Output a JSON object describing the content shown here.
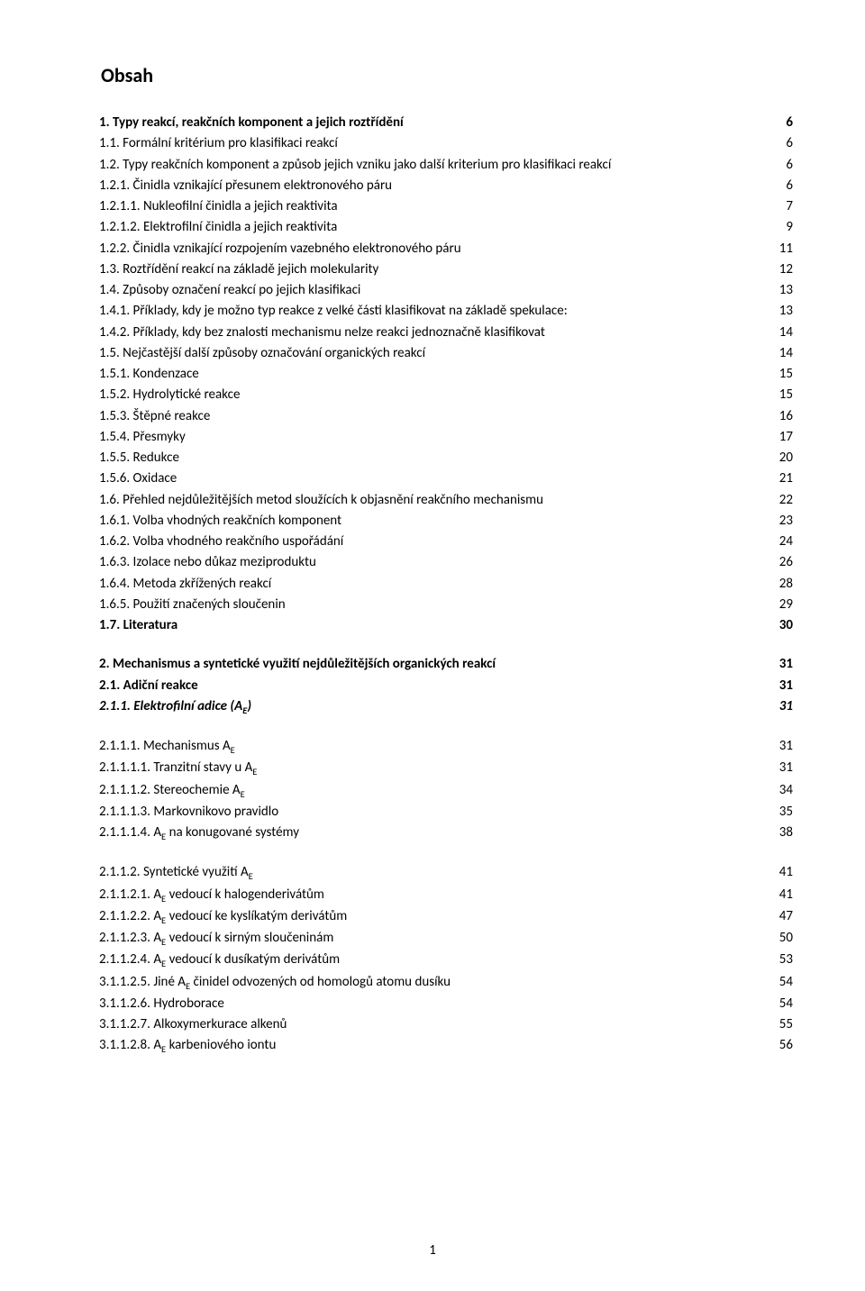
{
  "title": "Obsah",
  "page_number": "1",
  "groups": [
    {
      "gap_before": false,
      "items": [
        {
          "label_html": "<b>1. Typy reakcí, reakčních komponent a jejich roztřídění</b>",
          "page": "6",
          "bold": true
        },
        {
          "label_html": "1.1. Formální kritérium pro klasifikaci reakcí",
          "page": "6"
        },
        {
          "label_html": "1.2. Typy reakčních komponent a způsob jejich vzniku jako další kriterium pro klasifikaci reakcí",
          "page": "6"
        },
        {
          "label_html": "1.2.1. Činidla vznikající přesunem elektronového páru",
          "page": "6"
        },
        {
          "label_html": "1.2.1.1. Nukleofilní činidla a jejich reaktivita",
          "page": "7"
        },
        {
          "label_html": "1.2.1.2. Elektrofilní činidla a jejich reaktivita",
          "page": "9"
        },
        {
          "label_html": "1.2.2. Činidla vznikající rozpojením vazebného elektronového páru",
          "page": "11"
        },
        {
          "label_html": "1.3. Roztřídění reakcí na základě jejich molekularity",
          "page": "12"
        },
        {
          "label_html": "1.4. Způsoby označení reakcí po jejich klasifikaci",
          "page": "13"
        },
        {
          "label_html": "1.4.1. Příklady, kdy je možno typ reakce z velké části klasifikovat na základě spekulace:",
          "page": "13"
        },
        {
          "label_html": "1.4.2. Příklady, kdy bez znalosti mechanismu nelze reakci jednoznačně klasifikovat",
          "page": "14"
        },
        {
          "label_html": "1.5. Nejčastější další způsoby označování organických reakcí",
          "page": "14"
        },
        {
          "label_html": "1.5.1. Kondenzace",
          "page": "15"
        },
        {
          "label_html": "1.5.2. Hydrolytické reakce",
          "page": "15"
        },
        {
          "label_html": "1.5.3. Štěpné reakce",
          "page": "16"
        },
        {
          "label_html": "1.5.4. Přesmyky",
          "page": "17"
        },
        {
          "label_html": "1.5.5. Redukce",
          "page": "20"
        },
        {
          "label_html": "1.5.6. Oxidace",
          "page": "21"
        },
        {
          "label_html": "1.6. Přehled nejdůležitějších metod sloužících k objasnění reakčního mechanismu",
          "page": "22"
        },
        {
          "label_html": "1.6.1. Volba vhodných reakčních komponent",
          "page": "23"
        },
        {
          "label_html": "1.6.2. Volba vhodného reakčního uspořádání",
          "page": "24"
        },
        {
          "label_html": "1.6.3. Izolace nebo důkaz meziproduktu",
          "page": "26"
        },
        {
          "label_html": "1.6.4. Metoda zkřížených reakcí",
          "page": "28"
        },
        {
          "label_html": "1.6.5. Použití značených sloučenin",
          "page": "29"
        },
        {
          "label_html": "<b>1.7. Literatura</b>",
          "page": "30",
          "bold": true
        }
      ]
    },
    {
      "gap_before": true,
      "items": [
        {
          "label_html": "<b>2. Mechanismus a syntetické využití nejdůležitějších organických reakcí</b>",
          "page": "31",
          "bold": true
        },
        {
          "label_html": "<b>2.1. Adiční reakce</b>",
          "page": "31",
          "bold": true
        },
        {
          "label_html": "<b>2.1.1. Elektrofilní adice (A<sub>E</sub>)</b>",
          "page": "<i>31</i>",
          "bold": true,
          "italic": true
        }
      ]
    },
    {
      "gap_before": true,
      "items": [
        {
          "label_html": "2.1.1.1. Mechanismus A<sub>E</sub>",
          "page": "31"
        },
        {
          "label_html": "2.1.1.1.1. Tranzitní stavy u A<sub>E</sub>",
          "page": "31"
        },
        {
          "label_html": "2.1.1.1.2. Stereochemie A<sub>E</sub>",
          "page": "34"
        },
        {
          "label_html": "2.1.1.1.3. Markovnikovo pravidlo",
          "page": "35"
        },
        {
          "label_html": "2.1.1.1.4. A<sub>E</sub> na konugované systémy",
          "page": "38"
        }
      ]
    },
    {
      "gap_before": true,
      "items": [
        {
          "label_html": "2.1.1.2. Syntetické využití A<sub>E</sub>",
          "page": "41"
        },
        {
          "label_html": "2.1.1.2.1. A<sub>E</sub> vedoucí k halogenderivátům",
          "page": "41"
        },
        {
          "label_html": "2.1.1.2.2. A<sub>E</sub> vedoucí ke kyslíkatým derivátům",
          "page": "47"
        },
        {
          "label_html": "2.1.1.2.3. A<sub>E</sub> vedoucí k sirným sloučeninám",
          "page": "50"
        },
        {
          "label_html": "2.1.1.2.4. A<sub>E</sub> vedoucí k dusíkatým derivátům",
          "page": "53"
        },
        {
          "label_html": "3.1.1.2.5. Jiné A<sub>E</sub> činidel odvozených od homologů atomu dusíku",
          "page": "54"
        },
        {
          "label_html": "3.1.1.2.6. Hydroborace",
          "page": "54"
        },
        {
          "label_html": "3.1.1.2.7. Alkoxymerkurace alkenů",
          "page": "55"
        },
        {
          "label_html": "3.1.1.2.8. A<sub>E</sub> karbeniového iontu",
          "page": "56"
        }
      ]
    }
  ]
}
